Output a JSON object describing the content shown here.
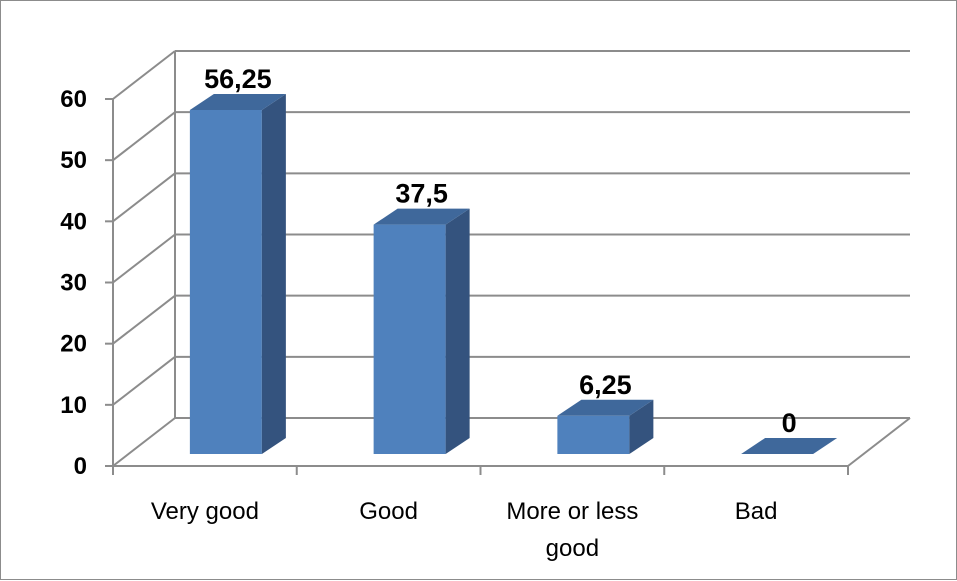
{
  "chart_data": {
    "type": "bar",
    "style": "3d-column",
    "categories": [
      [
        "Very good"
      ],
      [
        "Good"
      ],
      [
        "More or less",
        "good"
      ],
      [
        "Bad"
      ]
    ],
    "values": [
      56.25,
      37.5,
      6.25,
      0
    ],
    "value_labels": [
      "56,25",
      "37,5",
      "6,25",
      "0"
    ],
    "y_ticks": [
      "0",
      "10",
      "20",
      "30",
      "40",
      "50",
      "60"
    ],
    "ylim": [
      0,
      60
    ],
    "grid": true,
    "legend": "none",
    "colors": {
      "bar_front": "#4f81bd",
      "bar_side": "#34537e",
      "bar_top": "#3f689b",
      "grid": "#8c8c8c"
    }
  }
}
